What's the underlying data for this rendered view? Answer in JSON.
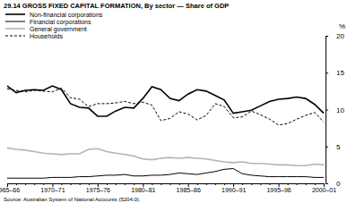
{
  "chart_data": {
    "type": "line",
    "title": "29.14  GROSS FIXED CAPITAL FORMATION, By sector — Share of GDP",
    "y_label": "%",
    "source": "Source: Australian System of National Accounts (5204.0).",
    "categories": [
      "1965–66",
      null,
      null,
      null,
      null,
      "1970–71",
      null,
      null,
      null,
      null,
      "1975–76",
      null,
      null,
      null,
      null,
      "1980–81",
      null,
      null,
      null,
      null,
      "1985–86",
      null,
      null,
      null,
      null,
      "1990–91",
      null,
      null,
      null,
      null,
      "1995–96",
      null,
      null,
      null,
      null,
      "2000–01"
    ],
    "series": [
      {
        "name": "Non-financial corporations",
        "color": "#000000",
        "line_style": "solid",
        "values": [
          13.2,
          12.3,
          12.6,
          12.7,
          12.6,
          13.2,
          12.7,
          10.8,
          10.3,
          10.2,
          9.1,
          9.1,
          9.8,
          10.3,
          10.2,
          11.5,
          13.1,
          12.7,
          11.5,
          11.2,
          12.1,
          12.7,
          12.5,
          11.9,
          11.3,
          9.5,
          9.7,
          9.9,
          10.5,
          11.1,
          11.4,
          11.5,
          11.7,
          11.5,
          10.7,
          9.5
        ]
      },
      {
        "name": "Financial corporations",
        "color": "#000000",
        "line_style": "solid",
        "values": [
          0.7,
          0.7,
          0.7,
          0.7,
          0.7,
          0.8,
          0.8,
          0.8,
          0.9,
          0.9,
          1.0,
          1.1,
          1.1,
          1.2,
          1.0,
          1.0,
          1.1,
          1.1,
          1.2,
          1.4,
          1.3,
          1.2,
          1.4,
          1.6,
          1.9,
          2.0,
          1.3,
          1.1,
          1.0,
          0.9,
          0.9,
          0.9,
          0.9,
          0.9,
          0.8,
          0.8
        ]
      },
      {
        "name": "General government",
        "color": "#b4b4b4",
        "line_style": "solid",
        "values": [
          4.8,
          4.6,
          4.5,
          4.3,
          4.1,
          4.0,
          3.9,
          4.0,
          4.0,
          4.6,
          4.7,
          4.3,
          4.1,
          3.9,
          3.7,
          3.3,
          3.2,
          3.4,
          3.5,
          3.4,
          3.5,
          3.4,
          3.3,
          3.1,
          2.9,
          2.8,
          2.9,
          2.7,
          2.7,
          2.6,
          2.5,
          2.5,
          2.4,
          2.4,
          2.6,
          2.5
        ]
      },
      {
        "name": "Households",
        "color": "#000000",
        "line_style": "dashed",
        "values": [
          12.8,
          12.6,
          12.4,
          12.6,
          12.5,
          12.4,
          12.9,
          11.6,
          11.4,
          10.4,
          10.8,
          10.8,
          10.9,
          11.1,
          10.8,
          11.0,
          10.6,
          8.5,
          8.8,
          9.7,
          9.4,
          8.6,
          9.2,
          10.8,
          10.4,
          8.9,
          9.0,
          9.8,
          9.3,
          8.7,
          7.9,
          8.1,
          8.7,
          9.2,
          9.6,
          8.3
        ]
      }
    ],
    "ylim": [
      0,
      20
    ],
    "yticks": [
      0,
      5,
      10,
      15,
      20
    ],
    "legend": "top-left",
    "grid": false
  }
}
